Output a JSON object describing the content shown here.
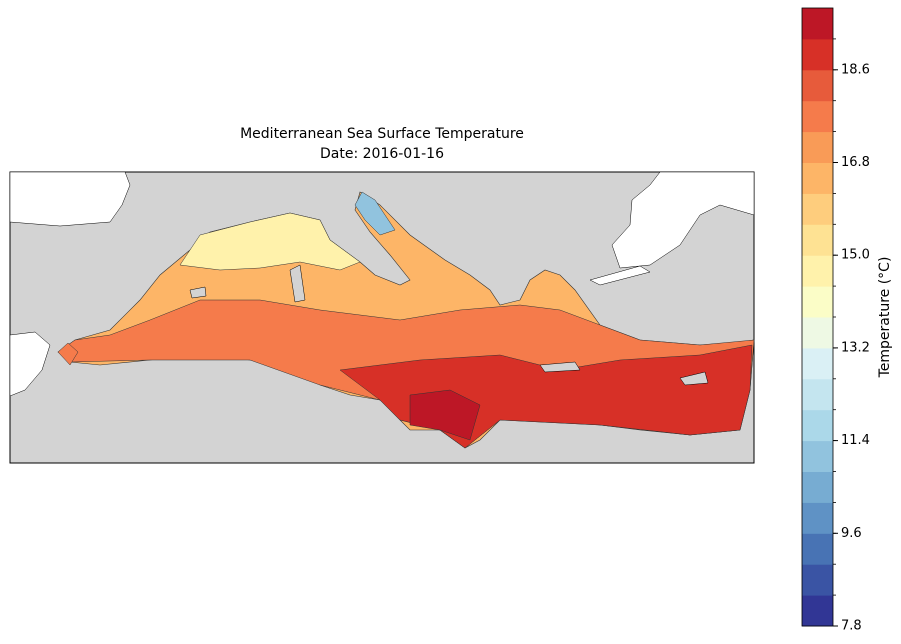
{
  "chart_data": {
    "type": "contour",
    "title": "Mediterranean Sea Surface Temperature",
    "subtitle": "Date: 2016-01-16",
    "colorbar": {
      "label": "Temperature (°C)",
      "lim": [
        7.8,
        19.8
      ],
      "ticks": [
        7.8,
        9.6,
        11.4,
        13.2,
        {
          "value": 15,
          "label": "15.0"
        },
        16.8,
        18.6
      ],
      "colors": [
        "#313695",
        "#3a54a4",
        "#4873b4",
        "#5f92c5",
        "#77acd2",
        "#91c3de",
        "#abd8e9",
        "#c4e5ef",
        "#daf0f5",
        "#eef9e4",
        "#fbfdc7",
        "#fff2ab",
        "#fee293",
        "#fecd7d",
        "#fdb567",
        "#f99b57",
        "#f57b4b",
        "#e75b3b",
        "#d73027",
        "#bd1726"
      ]
    }
  }
}
